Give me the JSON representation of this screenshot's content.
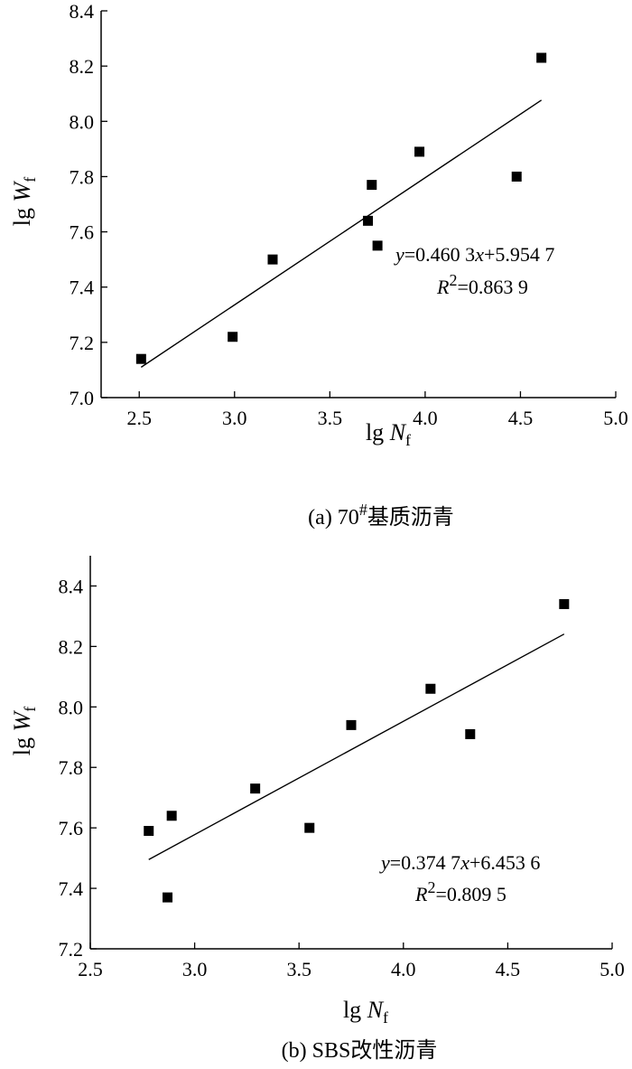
{
  "chart_data": [
    {
      "type": "scatter",
      "caption": "(a) 70#基质沥青",
      "caption_parts": {
        "prefix": "(a) 70",
        "sup": "#",
        "suffix": "基质沥青"
      },
      "xlabel": {
        "base": "lg ",
        "var": "N",
        "sub": "f"
      },
      "ylabel": {
        "base": "lg ",
        "var": "W",
        "sub": "f"
      },
      "xlim": [
        2.3,
        5.0
      ],
      "ylim": [
        7.0,
        8.4
      ],
      "xticks": [
        "2.5",
        "3.0",
        "3.5",
        "4.0",
        "4.5",
        "5.0"
      ],
      "yticks": [
        "7.0",
        "7.2",
        "7.4",
        "7.6",
        "7.8",
        "8.0",
        "8.2",
        "8.4"
      ],
      "points": [
        [
          2.51,
          7.14
        ],
        [
          2.99,
          7.22
        ],
        [
          3.2,
          7.5
        ],
        [
          3.7,
          7.64
        ],
        [
          3.72,
          7.77
        ],
        [
          3.75,
          7.55
        ],
        [
          3.97,
          7.89
        ],
        [
          4.48,
          7.8
        ],
        [
          4.61,
          8.23
        ]
      ],
      "fit": {
        "slope": 0.4603,
        "intercept": 5.9547,
        "x_range": [
          2.51,
          4.61
        ]
      },
      "equation": {
        "y": "y",
        "rest": "=0.460 3",
        "x": "x",
        "tail": "+5.954 7"
      },
      "r2": {
        "r": "R",
        "sup": "2",
        "rest": "=0.863 9"
      },
      "grid": false,
      "marker": "filled-square",
      "color": "#000000"
    },
    {
      "type": "scatter",
      "caption": "(b) SBS改性沥青",
      "caption_parts": {
        "prefix": "(b) SBS改性沥青",
        "sup": "",
        "suffix": ""
      },
      "xlabel": {
        "base": "lg ",
        "var": "N",
        "sub": "f"
      },
      "ylabel": {
        "base": "lg ",
        "var": "W",
        "sub": "f"
      },
      "xlim": [
        2.5,
        5.0
      ],
      "ylim": [
        7.2,
        8.5
      ],
      "xticks": [
        "2.5",
        "3.0",
        "3.5",
        "4.0",
        "4.5",
        "5.0"
      ],
      "yticks": [
        "7.2",
        "7.4",
        "7.6",
        "7.8",
        "8.0",
        "8.2",
        "8.4"
      ],
      "points": [
        [
          2.78,
          7.59
        ],
        [
          2.87,
          7.37
        ],
        [
          2.89,
          7.64
        ],
        [
          3.29,
          7.73
        ],
        [
          3.55,
          7.6
        ],
        [
          3.75,
          7.94
        ],
        [
          4.13,
          8.06
        ],
        [
          4.32,
          7.91
        ],
        [
          4.77,
          8.34
        ]
      ],
      "fit": {
        "slope": 0.3747,
        "intercept": 6.4536,
        "x_range": [
          2.78,
          4.77
        ]
      },
      "equation": {
        "y": "y",
        "rest": "=0.374 7",
        "x": "x",
        "tail": "+6.453 6"
      },
      "r2": {
        "r": "R",
        "sup": "2",
        "rest": "=0.809 5"
      },
      "grid": false,
      "marker": "filled-square",
      "color": "#000000"
    }
  ]
}
